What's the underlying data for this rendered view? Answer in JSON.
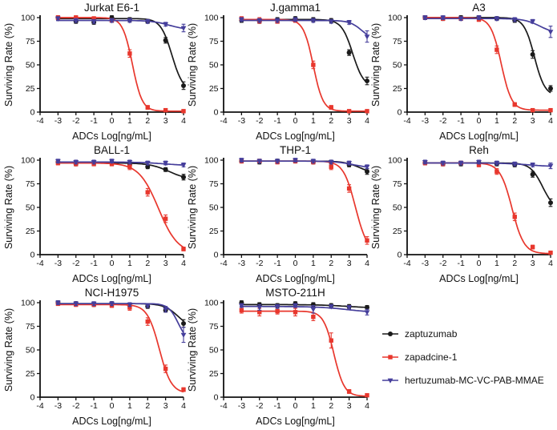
{
  "figure": {
    "background": "#ffffff"
  },
  "chart_data": {
    "type": "line",
    "xlabel": "ADCs Log[ng/mL]",
    "ylabel": "Surviving Rate (%)",
    "x_range": [
      -4,
      4
    ],
    "y_range": [
      0,
      100
    ],
    "x_ticks": [
      -4,
      -3,
      -2,
      -1,
      0,
      1,
      2,
      3,
      4
    ],
    "y_ticks": [
      0,
      25,
      50,
      75,
      100
    ],
    "grid": "off",
    "legend_position": "right-of-last-row",
    "x": [
      -3,
      -2,
      -1,
      0,
      1,
      2,
      3,
      4
    ],
    "series_meta": [
      {
        "name": "zaptuzumab",
        "color": "#1a1a1a",
        "marker": "circle"
      },
      {
        "name": "zapadcine-1",
        "color": "#e8372d",
        "marker": "square"
      },
      {
        "name": "hertuzumab-MC-VC-PAB-MMAE",
        "color": "#453e9b",
        "marker": "triangle-down"
      }
    ],
    "charts": [
      {
        "title": "Jurkat E6-1",
        "series": [
          {
            "y": [
              100,
              96,
              95,
              100,
              98,
              96,
              76,
              28
            ],
            "err": [
              2,
              2,
              2,
              2,
              2,
              2,
              3,
              4
            ],
            "curve": {
              "top": 99,
              "bottom": 22,
              "ic50": 3.35,
              "hill": 1.4
            }
          },
          {
            "y": [
              100,
              100,
              99,
              97,
              62,
              5,
              2,
              1
            ],
            "err": [
              2,
              2,
              2,
              2,
              4,
              2,
              1,
              1
            ],
            "curve": {
              "top": 100,
              "bottom": 1,
              "ic50": 1.15,
              "hill": 1.6
            }
          },
          {
            "y": [
              99,
              97,
              96,
              97,
              97,
              96,
              93,
              89
            ],
            "err": [
              2,
              2,
              2,
              2,
              2,
              2,
              2,
              4
            ],
            "curve": {
              "top": 97,
              "bottom": 87,
              "ic50": 3.2,
              "hill": 0.9
            }
          }
        ]
      },
      {
        "title": "J.gamma1",
        "series": [
          {
            "y": [
              97,
              96,
              98,
              99,
              98,
              97,
              63,
              33
            ],
            "err": [
              2,
              2,
              2,
              2,
              2,
              2,
              3,
              4
            ],
            "curve": {
              "top": 98,
              "bottom": 26,
              "ic50": 3.2,
              "hill": 1.4
            }
          },
          {
            "y": [
              99,
              97,
              96,
              97,
              50,
              5,
              1,
              1
            ],
            "err": [
              2,
              3,
              2,
              2,
              4,
              2,
              1,
              1
            ],
            "curve": {
              "top": 98,
              "bottom": 1,
              "ic50": 1.0,
              "hill": 1.6
            }
          },
          {
            "y": [
              98,
              97,
              97,
              98,
              97,
              96,
              95,
              80
            ],
            "err": [
              2,
              2,
              2,
              2,
              2,
              2,
              2,
              6
            ],
            "curve": {
              "top": 97,
              "bottom": 76,
              "ic50": 3.7,
              "hill": 1.3
            }
          }
        ]
      },
      {
        "title": "A3",
        "series": [
          {
            "y": [
              100,
              99,
              100,
              100,
              99,
              97,
              61,
              25
            ],
            "err": [
              2,
              2,
              2,
              2,
              2,
              2,
              4,
              3
            ],
            "curve": {
              "top": 100,
              "bottom": 17,
              "ic50": 3.1,
              "hill": 1.5
            }
          },
          {
            "y": [
              100,
              99,
              99,
              98,
              66,
              8,
              2,
              2
            ],
            "err": [
              2,
              2,
              2,
              2,
              4,
              2,
              1,
              1
            ],
            "curve": {
              "top": 100,
              "bottom": 2,
              "ic50": 1.25,
              "hill": 1.5
            }
          },
          {
            "y": [
              100,
              100,
              99,
              100,
              99,
              98,
              96,
              85
            ],
            "err": [
              2,
              2,
              2,
              2,
              2,
              2,
              2,
              6
            ],
            "curve": {
              "top": 99,
              "bottom": 83,
              "ic50": 3.4,
              "hill": 1.0
            }
          }
        ]
      },
      {
        "title": "BALL-1",
        "series": [
          {
            "y": [
              98,
              96,
              97,
              97,
              95,
              93,
              90,
              82
            ],
            "err": [
              2,
              2,
              2,
              2,
              2,
              2,
              2,
              3
            ],
            "curve": {
              "top": 97,
              "bottom": 79,
              "ic50": 3.2,
              "hill": 0.8
            }
          },
          {
            "y": [
              97,
              96,
              96,
              96,
              93,
              66,
              38,
              6
            ],
            "err": [
              2,
              2,
              2,
              2,
              3,
              4,
              4,
              2
            ],
            "curve": {
              "top": 97,
              "bottom": 1,
              "ic50": 2.6,
              "hill": 0.8
            }
          },
          {
            "y": [
              99,
              98,
              98,
              99,
              98,
              97,
              97,
              95
            ],
            "err": [
              2,
              2,
              2,
              2,
              2,
              2,
              2,
              2
            ],
            "curve": {
              "top": 98,
              "bottom": 94,
              "ic50": 3.0,
              "hill": 0.6
            }
          }
        ]
      },
      {
        "title": "THP-1",
        "series": [
          {
            "y": [
              99,
              98,
              99,
              99,
              98,
              98,
              95,
              88
            ],
            "err": [
              2,
              2,
              2,
              2,
              2,
              2,
              2,
              3
            ],
            "curve": {
              "top": 99,
              "bottom": 85,
              "ic50": 3.6,
              "hill": 1.0
            }
          },
          {
            "y": [
              99,
              99,
              98,
              99,
              98,
              93,
              70,
              15
            ],
            "err": [
              2,
              2,
              2,
              2,
              2,
              3,
              4,
              4
            ],
            "curve": {
              "top": 99,
              "bottom": 2,
              "ic50": 3.35,
              "hill": 1.3
            }
          },
          {
            "y": [
              100,
              99,
              99,
              100,
              99,
              98,
              97,
              93
            ],
            "err": [
              2,
              2,
              2,
              2,
              2,
              2,
              2,
              2
            ],
            "curve": {
              "top": 99,
              "bottom": 91,
              "ic50": 3.3,
              "hill": 0.8
            }
          }
        ]
      },
      {
        "title": "Reh",
        "series": [
          {
            "y": [
              97,
              96,
              96,
              97,
              96,
              95,
              85,
              55
            ],
            "err": [
              2,
              2,
              2,
              2,
              2,
              2,
              3,
              4
            ],
            "curve": {
              "top": 97,
              "bottom": 47,
              "ic50": 3.55,
              "hill": 1.3
            }
          },
          {
            "y": [
              97,
              96,
              97,
              95,
              88,
              40,
              8,
              2
            ],
            "err": [
              2,
              2,
              2,
              2,
              3,
              4,
              2,
              1
            ],
            "curve": {
              "top": 97,
              "bottom": 1,
              "ic50": 1.85,
              "hill": 1.3
            }
          },
          {
            "y": [
              98,
              97,
              97,
              98,
              97,
              96,
              95,
              94
            ],
            "err": [
              2,
              2,
              2,
              2,
              2,
              2,
              2,
              3
            ],
            "curve": {
              "top": 97,
              "bottom": 93,
              "ic50": 2.8,
              "hill": 0.6
            }
          }
        ]
      },
      {
        "title": "NCI-H1975",
        "series": [
          {
            "y": [
              100,
              99,
              98,
              99,
              97,
              96,
              92,
              78
            ],
            "err": [
              2,
              2,
              2,
              2,
              2,
              2,
              2,
              4
            ],
            "curve": {
              "top": 99,
              "bottom": 72,
              "ic50": 3.7,
              "hill": 1.1
            }
          },
          {
            "y": [
              99,
              98,
              98,
              97,
              95,
              80,
              30,
              8
            ],
            "err": [
              2,
              2,
              2,
              2,
              3,
              4,
              4,
              2
            ],
            "curve": {
              "top": 98,
              "bottom": 4,
              "ic50": 2.65,
              "hill": 1.3
            }
          },
          {
            "y": [
              100,
              99,
              99,
              99,
              98,
              97,
              93,
              66
            ],
            "err": [
              2,
              2,
              2,
              2,
              2,
              2,
              3,
              8
            ],
            "curve": {
              "top": 99,
              "bottom": 58,
              "ic50": 3.7,
              "hill": 1.6
            }
          }
        ]
      },
      {
        "title": "MSTO-211H",
        "series": [
          {
            "y": [
              100,
              98,
              97,
              99,
              98,
              97,
              96,
              95
            ],
            "err": [
              2,
              2,
              2,
              2,
              2,
              2,
              2,
              2
            ],
            "curve": {
              "top": 98,
              "bottom": 94,
              "ic50": 3.0,
              "hill": 0.5
            }
          },
          {
            "y": [
              92,
              90,
              91,
              90,
              85,
              60,
              6,
              2
            ],
            "err": [
              3,
              4,
              3,
              4,
              4,
              8,
              2,
              1
            ],
            "curve": {
              "top": 91,
              "bottom": 1,
              "ic50": 2.15,
              "hill": 1.5
            }
          },
          {
            "y": [
              97,
              95,
              96,
              97,
              93,
              96,
              95,
              90
            ],
            "err": [
              2,
              3,
              2,
              2,
              4,
              2,
              2,
              3
            ],
            "curve": {
              "top": 96,
              "bottom": 89,
              "ic50": 3.0,
              "hill": 0.5
            }
          }
        ]
      }
    ]
  }
}
